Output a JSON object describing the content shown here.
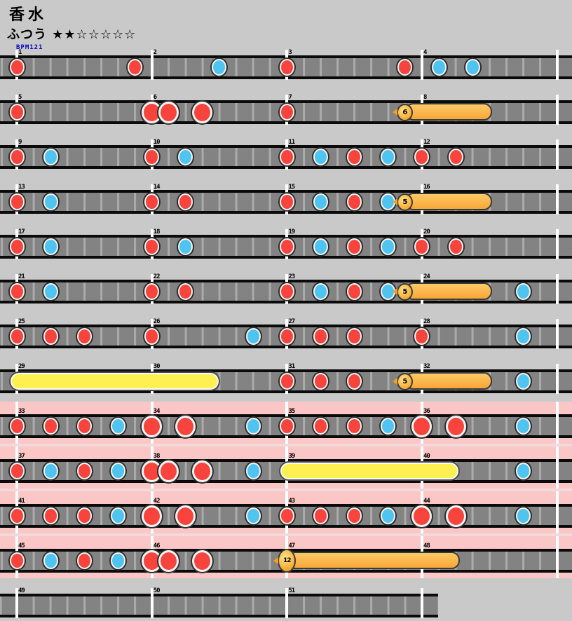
{
  "header": {
    "title": "香水",
    "difficulty_label": "ふつう",
    "stars": "★★☆☆☆☆☆",
    "bpm_label": "BPM121"
  },
  "colors": {
    "background": "#C9C9C9",
    "lane_gray": "#838383",
    "don_red": "#F8443C",
    "ka_blue": "#4FC4F1",
    "drumroll_yellow": "#FFF052",
    "balloon_tail_orange": "#F8A636",
    "balloon_tail_highlight": "#FDCA67",
    "balloon_ball_gold": "#F7A82C",
    "gogo_pink": "#FBC6C6",
    "bpm_text_blue": "#0000CD"
  },
  "chart": {
    "rows": [
      {
        "measures": [
          1,
          2,
          3,
          4
        ],
        "gogo": false,
        "notes": [
          {
            "t": "don",
            "m": 0,
            "c": 0
          },
          {
            "t": "don",
            "m": 0,
            "c": 7
          },
          {
            "t": "ka",
            "m": 1,
            "c": 4
          },
          {
            "t": "don",
            "m": 2,
            "c": 0
          },
          {
            "t": "don",
            "m": 2,
            "c": 7
          },
          {
            "t": "ka",
            "m": 3,
            "c": 1
          },
          {
            "t": "ka",
            "m": 3,
            "c": 3
          }
        ]
      },
      {
        "measures": [
          5,
          6,
          7,
          8
        ],
        "gogo": false,
        "notes": [
          {
            "t": "don",
            "m": 0,
            "c": 0
          },
          {
            "t": "bigdon",
            "m": 1,
            "c": 0
          },
          {
            "t": "bigdon",
            "m": 1,
            "c": 1
          },
          {
            "t": "bigdon",
            "m": 1,
            "c": 3
          },
          {
            "t": "don",
            "m": 2,
            "c": 0
          },
          {
            "t": "balloon",
            "m": 2,
            "c": 7,
            "count": "6",
            "em": 3,
            "ec": 3.7
          }
        ]
      },
      {
        "measures": [
          9,
          10,
          11,
          12
        ],
        "gogo": false,
        "notes": [
          {
            "t": "don",
            "m": 0,
            "c": 0
          },
          {
            "t": "ka",
            "m": 0,
            "c": 2
          },
          {
            "t": "don",
            "m": 1,
            "c": 0
          },
          {
            "t": "ka",
            "m": 1,
            "c": 2
          },
          {
            "t": "don",
            "m": 2,
            "c": 0
          },
          {
            "t": "ka",
            "m": 2,
            "c": 2
          },
          {
            "t": "don",
            "m": 2,
            "c": 4
          },
          {
            "t": "ka",
            "m": 2,
            "c": 6
          },
          {
            "t": "don",
            "m": 3,
            "c": 0
          },
          {
            "t": "don",
            "m": 3,
            "c": 2
          }
        ]
      },
      {
        "measures": [
          13,
          14,
          15,
          16
        ],
        "gogo": false,
        "notes": [
          {
            "t": "don",
            "m": 0,
            "c": 0
          },
          {
            "t": "ka",
            "m": 0,
            "c": 2
          },
          {
            "t": "don",
            "m": 1,
            "c": 0
          },
          {
            "t": "don",
            "m": 1,
            "c": 2
          },
          {
            "t": "don",
            "m": 2,
            "c": 0
          },
          {
            "t": "ka",
            "m": 2,
            "c": 2
          },
          {
            "t": "don",
            "m": 2,
            "c": 4
          },
          {
            "t": "ka",
            "m": 2,
            "c": 6
          },
          {
            "t": "balloon",
            "m": 2,
            "c": 7,
            "count": "5",
            "em": 3,
            "ec": 3.7
          }
        ]
      },
      {
        "measures": [
          17,
          18,
          19,
          20
        ],
        "gogo": false,
        "notes": [
          {
            "t": "don",
            "m": 0,
            "c": 0
          },
          {
            "t": "ka",
            "m": 0,
            "c": 2
          },
          {
            "t": "don",
            "m": 1,
            "c": 0
          },
          {
            "t": "ka",
            "m": 1,
            "c": 2
          },
          {
            "t": "don",
            "m": 2,
            "c": 0
          },
          {
            "t": "ka",
            "m": 2,
            "c": 2
          },
          {
            "t": "don",
            "m": 2,
            "c": 4
          },
          {
            "t": "ka",
            "m": 2,
            "c": 6
          },
          {
            "t": "don",
            "m": 3,
            "c": 0
          },
          {
            "t": "don",
            "m": 3,
            "c": 2
          }
        ]
      },
      {
        "measures": [
          21,
          22,
          23,
          24
        ],
        "gogo": false,
        "notes": [
          {
            "t": "don",
            "m": 0,
            "c": 0
          },
          {
            "t": "ka",
            "m": 0,
            "c": 2
          },
          {
            "t": "don",
            "m": 1,
            "c": 0
          },
          {
            "t": "don",
            "m": 1,
            "c": 2
          },
          {
            "t": "don",
            "m": 2,
            "c": 0
          },
          {
            "t": "ka",
            "m": 2,
            "c": 2
          },
          {
            "t": "don",
            "m": 2,
            "c": 4
          },
          {
            "t": "ka",
            "m": 2,
            "c": 6
          },
          {
            "t": "balloon",
            "m": 2,
            "c": 7,
            "count": "5",
            "em": 3,
            "ec": 3.7
          },
          {
            "t": "ka",
            "m": 3,
            "c": 6
          }
        ]
      },
      {
        "measures": [
          25,
          26,
          27,
          28
        ],
        "gogo": false,
        "notes": [
          {
            "t": "don",
            "m": 0,
            "c": 0
          },
          {
            "t": "don",
            "m": 0,
            "c": 2
          },
          {
            "t": "don",
            "m": 0,
            "c": 4
          },
          {
            "t": "don",
            "m": 1,
            "c": 0
          },
          {
            "t": "ka",
            "m": 1,
            "c": 6
          },
          {
            "t": "don",
            "m": 2,
            "c": 0
          },
          {
            "t": "don",
            "m": 2,
            "c": 2
          },
          {
            "t": "don",
            "m": 2,
            "c": 4
          },
          {
            "t": "don",
            "m": 3,
            "c": 0
          },
          {
            "t": "ka",
            "m": 3,
            "c": 6
          }
        ]
      },
      {
        "measures": [
          29,
          30,
          31,
          32
        ],
        "gogo": false,
        "notes": [
          {
            "t": "roll",
            "m": 0,
            "c": 0,
            "em": 1,
            "ec": 3.6
          },
          {
            "t": "don",
            "m": 2,
            "c": 0
          },
          {
            "t": "don",
            "m": 2,
            "c": 2
          },
          {
            "t": "don",
            "m": 2,
            "c": 4
          },
          {
            "t": "balloon",
            "m": 2,
            "c": 7,
            "count": "5",
            "em": 3,
            "ec": 3.7
          },
          {
            "t": "ka",
            "m": 3,
            "c": 6
          }
        ]
      },
      {
        "measures": [
          33,
          34,
          35,
          36
        ],
        "gogo": true,
        "notes": [
          {
            "t": "don",
            "m": 0,
            "c": 0
          },
          {
            "t": "don",
            "m": 0,
            "c": 2
          },
          {
            "t": "don",
            "m": 0,
            "c": 4
          },
          {
            "t": "ka",
            "m": 0,
            "c": 6
          },
          {
            "t": "bigdon",
            "m": 1,
            "c": 0
          },
          {
            "t": "bigdon",
            "m": 1,
            "c": 2
          },
          {
            "t": "ka",
            "m": 1,
            "c": 6
          },
          {
            "t": "don",
            "m": 2,
            "c": 0
          },
          {
            "t": "don",
            "m": 2,
            "c": 2
          },
          {
            "t": "don",
            "m": 2,
            "c": 4
          },
          {
            "t": "ka",
            "m": 2,
            "c": 6
          },
          {
            "t": "bigdon",
            "m": 3,
            "c": 0
          },
          {
            "t": "bigdon",
            "m": 3,
            "c": 2
          },
          {
            "t": "ka",
            "m": 3,
            "c": 6
          }
        ]
      },
      {
        "measures": [
          37,
          38,
          39,
          40
        ],
        "gogo": true,
        "notes": [
          {
            "t": "don",
            "m": 0,
            "c": 0
          },
          {
            "t": "ka",
            "m": 0,
            "c": 2
          },
          {
            "t": "don",
            "m": 0,
            "c": 4
          },
          {
            "t": "ka",
            "m": 0,
            "c": 6
          },
          {
            "t": "bigdon",
            "m": 1,
            "c": 0
          },
          {
            "t": "bigdon",
            "m": 1,
            "c": 1
          },
          {
            "t": "bigdon",
            "m": 1,
            "c": 3
          },
          {
            "t": "ka",
            "m": 1,
            "c": 6
          },
          {
            "t": "roll",
            "m": 2,
            "c": 0,
            "em": 3,
            "ec": 1.8
          },
          {
            "t": "ka",
            "m": 3,
            "c": 6
          }
        ]
      },
      {
        "measures": [
          41,
          42,
          43,
          44
        ],
        "gogo": true,
        "notes": [
          {
            "t": "don",
            "m": 0,
            "c": 0
          },
          {
            "t": "don",
            "m": 0,
            "c": 2
          },
          {
            "t": "don",
            "m": 0,
            "c": 4
          },
          {
            "t": "ka",
            "m": 0,
            "c": 6
          },
          {
            "t": "bigdon",
            "m": 1,
            "c": 0
          },
          {
            "t": "bigdon",
            "m": 1,
            "c": 2
          },
          {
            "t": "ka",
            "m": 1,
            "c": 6
          },
          {
            "t": "don",
            "m": 2,
            "c": 0
          },
          {
            "t": "don",
            "m": 2,
            "c": 2
          },
          {
            "t": "don",
            "m": 2,
            "c": 4
          },
          {
            "t": "ka",
            "m": 2,
            "c": 6
          },
          {
            "t": "bigdon",
            "m": 3,
            "c": 0
          },
          {
            "t": "bigdon",
            "m": 3,
            "c": 2
          },
          {
            "t": "ka",
            "m": 3,
            "c": 6
          }
        ]
      },
      {
        "measures": [
          45,
          46,
          47,
          48
        ],
        "gogo": true,
        "notes": [
          {
            "t": "don",
            "m": 0,
            "c": 0
          },
          {
            "t": "ka",
            "m": 0,
            "c": 2
          },
          {
            "t": "don",
            "m": 0,
            "c": 4
          },
          {
            "t": "ka",
            "m": 0,
            "c": 6
          },
          {
            "t": "bigdon",
            "m": 1,
            "c": 0
          },
          {
            "t": "bigdon",
            "m": 1,
            "c": 1
          },
          {
            "t": "bigdon",
            "m": 1,
            "c": 3
          },
          {
            "t": "balloon",
            "m": 2,
            "c": 0,
            "count": "12",
            "big": true,
            "em": 3,
            "ec": 1.8
          }
        ]
      },
      {
        "measures": [
          49,
          50,
          51
        ],
        "gogo": false,
        "lane_w": 625,
        "notes": []
      }
    ]
  }
}
